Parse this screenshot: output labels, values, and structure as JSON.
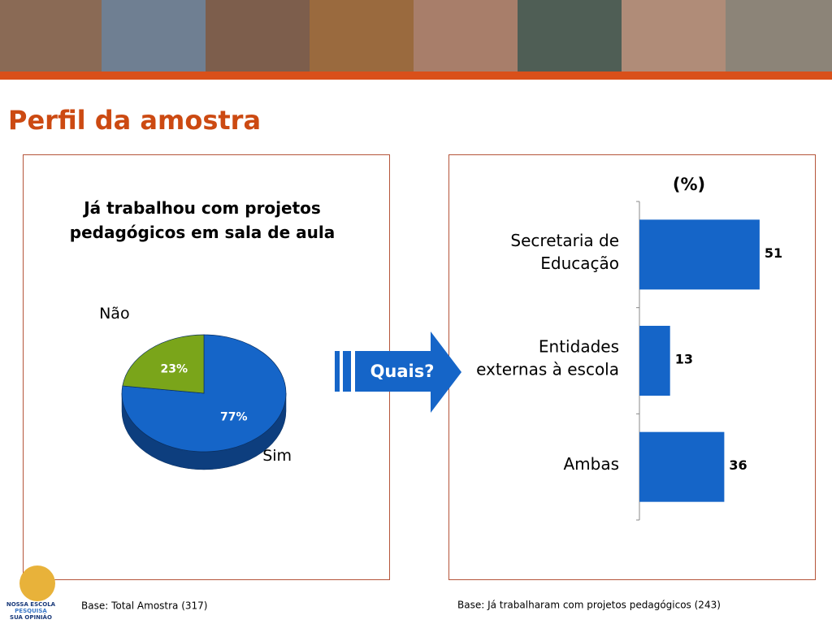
{
  "title": "Perfil da amostra",
  "arrow_label": "Quais?",
  "footnotes": [
    "Base: Total Amostra (317)",
    "Base: Já trabalharam com projetos pedagógicos (243)"
  ],
  "logo": [
    "NOSSA ESCOLA",
    "PESQUISA",
    "SUA OPINIÃO"
  ],
  "chart_data": [
    {
      "type": "pie",
      "title": "Já trabalhou com projetos pedagógicos em sala de aula",
      "categories": [
        "Sim",
        "Não"
      ],
      "values": [
        77,
        23
      ],
      "value_labels": [
        "77%",
        "23%"
      ],
      "colors": [
        "#1565c8",
        "#7aa51a"
      ]
    },
    {
      "type": "hbar",
      "title": "(%)",
      "categories": [
        [
          "Secretaria de",
          "Educação"
        ],
        [
          "Entidades",
          "externas à escola"
        ],
        [
          "Ambas"
        ]
      ],
      "values": [
        51,
        13,
        36
      ],
      "color": "#1565c8",
      "xlim": [
        0,
        60
      ]
    }
  ]
}
